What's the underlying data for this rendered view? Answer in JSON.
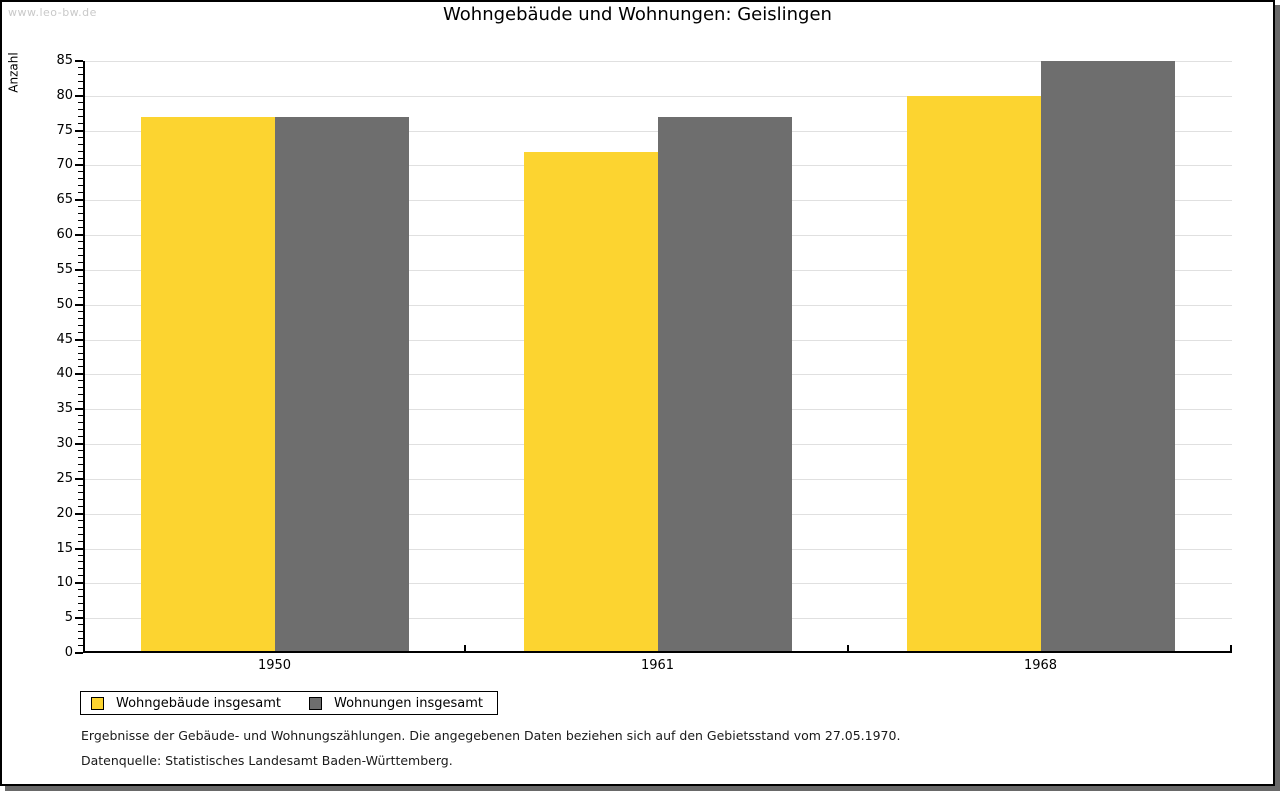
{
  "watermark": "www.leo-bw.de",
  "chart_data": {
    "type": "bar",
    "title": "Wohngebäude und Wohnungen: Geislingen",
    "ylabel": "Anzahl",
    "xlabel": "",
    "categories": [
      "1950",
      "1961",
      "1968"
    ],
    "series": [
      {
        "name": "Wohngebäude insgesamt",
        "color": "#FCD430",
        "values": [
          77,
          72,
          80
        ]
      },
      {
        "name": "Wohnungen insgesamt",
        "color": "#6E6E6E",
        "values": [
          77,
          77,
          85
        ]
      }
    ],
    "ylim": [
      0,
      85
    ],
    "yticks": [
      0,
      5,
      10,
      15,
      20,
      25,
      30,
      35,
      40,
      45,
      50,
      55,
      60,
      65,
      70,
      75,
      80,
      85
    ],
    "minor_tick_step": 1,
    "grid": true,
    "gridline_color": "#E0E0E0",
    "legend_position": "bottom-left"
  },
  "footnotes": [
    "Ergebnisse der Gebäude- und Wohnungszählungen. Die angegebenen Daten beziehen sich auf den Gebietsstand vom 27.05.1970.",
    "Datenquelle: Statistisches Landesamt Baden-Württemberg."
  ]
}
